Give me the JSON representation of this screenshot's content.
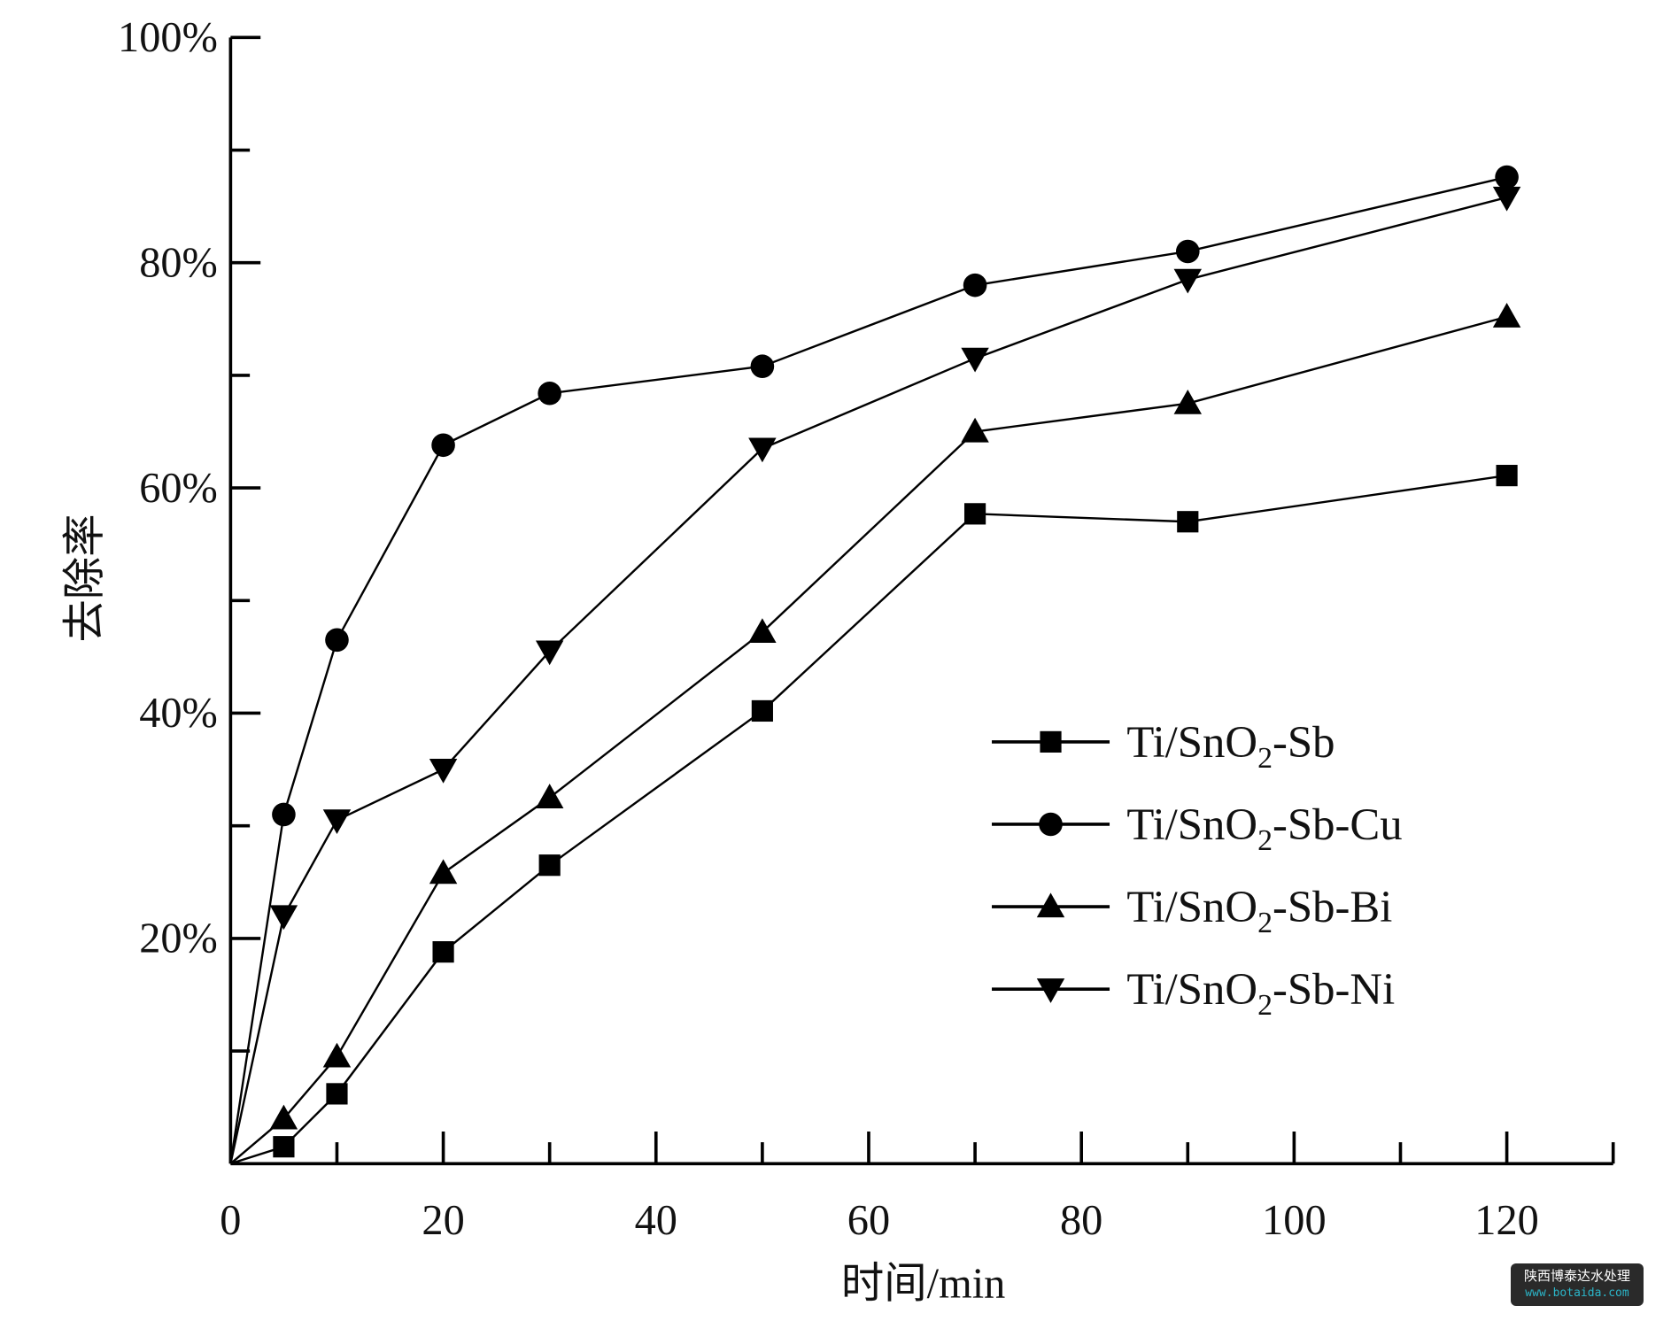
{
  "chart_data": {
    "type": "line",
    "xlabel": "时间/min",
    "ylabel": "去除率",
    "xlim": [
      0,
      130
    ],
    "ylim": [
      0,
      100
    ],
    "x_ticks": [
      "0",
      "20",
      "40",
      "60",
      "80",
      "100",
      "120"
    ],
    "y_ticks": [
      "20%",
      "40%",
      "60%",
      "80%",
      "100%"
    ],
    "grid": false,
    "legend_position": "right-middle",
    "x": [
      0,
      5,
      10,
      20,
      30,
      50,
      70,
      90,
      120
    ],
    "series": [
      {
        "name": "Ti/SnO2-Sb",
        "label_main": "Ti/SnO",
        "label_sub": "2",
        "label_tail": "-Sb",
        "marker": "square",
        "values": [
          0,
          1.5,
          6.2,
          18.8,
          26.5,
          40.2,
          57.7,
          57.0,
          61.1
        ]
      },
      {
        "name": "Ti/SnO2-Sb-Cu",
        "label_main": "Ti/SnO",
        "label_sub": "2",
        "label_tail": "-Sb-Cu",
        "marker": "circle",
        "values": [
          0,
          31.0,
          46.5,
          63.8,
          68.4,
          70.8,
          78.0,
          81.0,
          87.6
        ]
      },
      {
        "name": "Ti/SnO2-Sb-Bi",
        "label_main": "Ti/SnO",
        "label_sub": "2",
        "label_tail": "-Sb-Bi",
        "marker": "triangle-up",
        "values": [
          0,
          4.0,
          9.5,
          25.8,
          32.5,
          47.2,
          65.0,
          67.5,
          75.2
        ]
      },
      {
        "name": "Ti/SnO2-Sb-Ni",
        "label_main": "Ti/SnO",
        "label_sub": "2",
        "label_tail": "-Sb-Ni",
        "marker": "triangle-down",
        "values": [
          0,
          22.0,
          30.5,
          35.0,
          45.5,
          63.5,
          71.5,
          78.5,
          85.8
        ]
      }
    ],
    "color": "#000000"
  },
  "watermark": {
    "line1": "陕西博泰达水处理",
    "line2": "www.botaida.com"
  }
}
